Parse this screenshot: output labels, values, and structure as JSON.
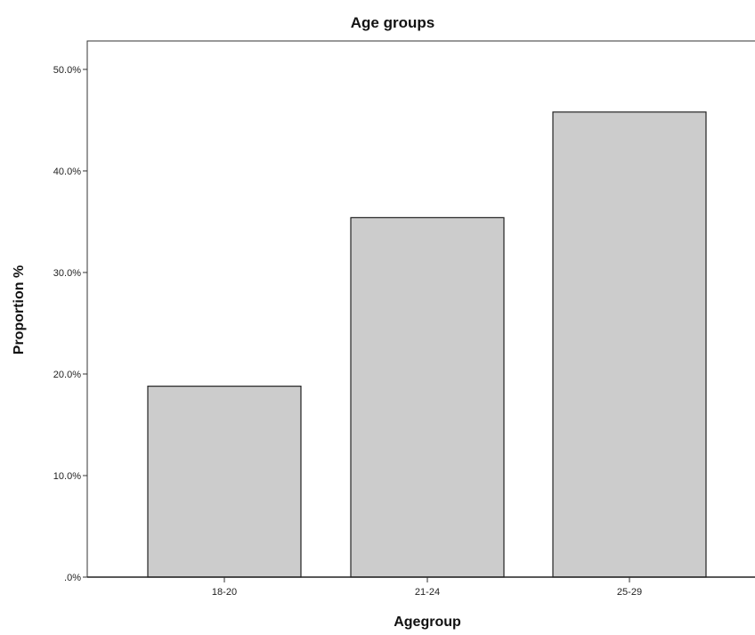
{
  "chart_data": {
    "type": "bar",
    "title": "Age groups",
    "xlabel": "Agegroup",
    "ylabel": "Proportion %",
    "categories": [
      "18-20",
      "21-24",
      "25-29"
    ],
    "values": [
      18.8,
      35.4,
      45.8
    ],
    "ylim": [
      0,
      52.8
    ],
    "yticks": [
      0,
      10,
      20,
      30,
      40,
      50
    ],
    "ytick_labels": [
      ".0%",
      "10.0%",
      "20.0%",
      "30.0%",
      "40.0%",
      "50.0%"
    ],
    "grid": false,
    "bar_color": "#cccccc",
    "bar_edge_color": "#222222"
  }
}
